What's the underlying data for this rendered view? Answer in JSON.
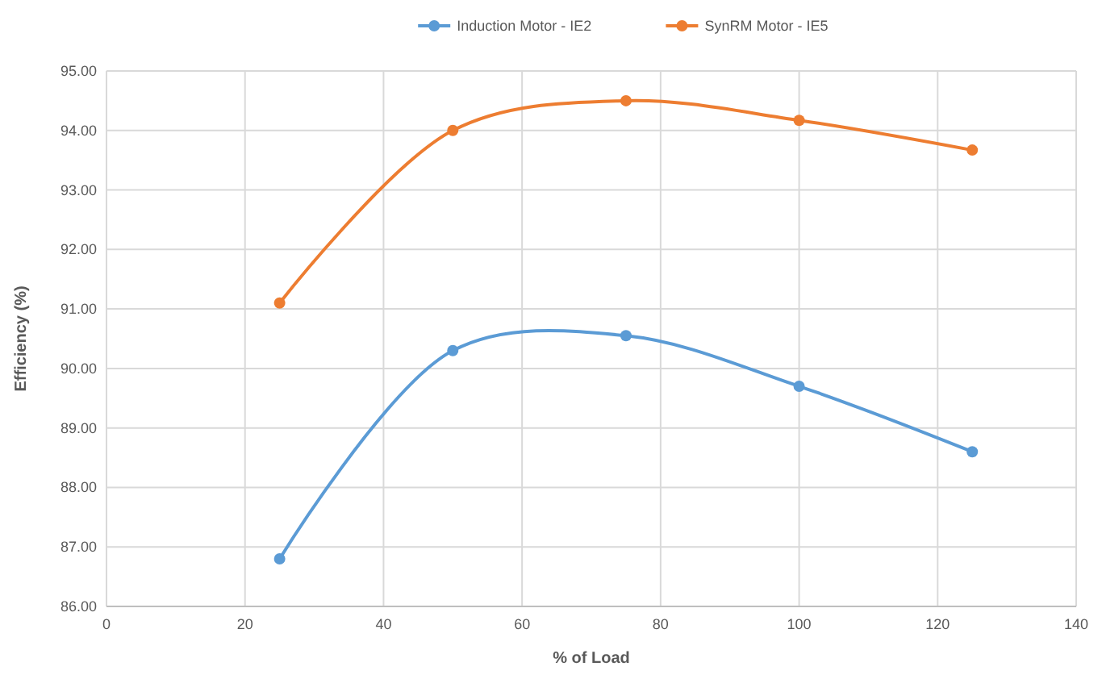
{
  "chart_data": {
    "type": "line",
    "xlabel": "% of Load",
    "ylabel": "Efficiency (%)",
    "x": [
      25,
      50,
      75,
      100,
      125
    ],
    "series": [
      {
        "name": "Induction Motor - IE2",
        "color": "#5b9bd5",
        "values": [
          86.8,
          90.3,
          90.55,
          89.7,
          88.6
        ]
      },
      {
        "name": "SynRM Motor - IE5",
        "color": "#ed7d31",
        "values": [
          91.1,
          94.0,
          94.5,
          94.17,
          93.67
        ]
      }
    ],
    "xlim": [
      0,
      140
    ],
    "xticks": [
      0,
      20,
      40,
      60,
      80,
      100,
      120,
      140
    ],
    "ylim": [
      86,
      95
    ],
    "yticks": [
      {
        "value": 86,
        "label": "86.00"
      },
      {
        "value": 87,
        "label": "87.00"
      },
      {
        "value": 88,
        "label": "88.00"
      },
      {
        "value": 89,
        "label": "89.00"
      },
      {
        "value": 90,
        "label": "90.00"
      },
      {
        "value": 91,
        "label": "91.00"
      },
      {
        "value": 92,
        "label": "92.00"
      },
      {
        "value": 93,
        "label": "93.00"
      },
      {
        "value": 94,
        "label": "94.00"
      },
      {
        "value": 95,
        "label": "95.00"
      }
    ],
    "grid": true,
    "legend": "top",
    "marker": "circle",
    "line_style": "solid"
  }
}
